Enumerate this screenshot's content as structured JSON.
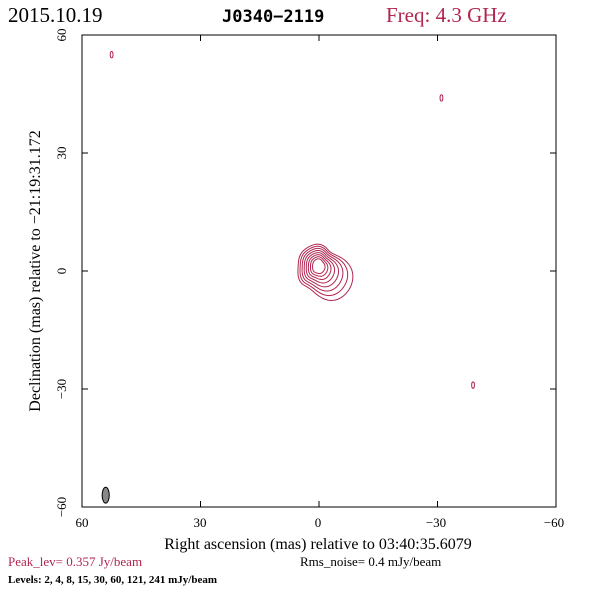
{
  "header": {
    "date": "2015.10.19",
    "source": "J0340−2119",
    "frequency": "Freq: 4.3 GHz"
  },
  "axes": {
    "xlabel": "Right ascension (mas) relative to 03:40:35.6079",
    "ylabel": "Declination (mas) relative to −21:19:31.172",
    "xlim": [
      60,
      -60
    ],
    "ylim": [
      -60,
      60
    ],
    "xticks": [
      "60",
      "30",
      "0",
      "−30",
      "−60"
    ],
    "yticks": [
      "−60",
      "−30",
      "0",
      "30",
      "60"
    ]
  },
  "footer": {
    "peak": "Peak_lev=  0.357 Jy/beam",
    "rms": "Rms_noise=  0.4 mJy/beam",
    "levels": "Levels:   2,    4,    8,   15,   30,   60,  121,  241 mJy/beam"
  },
  "colors": {
    "contour": "#b0264f",
    "axes": "#000000",
    "beam": "#888888"
  },
  "chart_data": {
    "type": "contour",
    "title": "J0340−2119",
    "xlabel": "Right ascension (mas) relative to 03:40:35.6079",
    "ylabel": "Declination (mas) relative to −21:19:31.172",
    "xlim": [
      60,
      -60
    ],
    "ylim": [
      -60,
      60
    ],
    "peak_jy_per_beam": 0.357,
    "rms_mjy_per_beam": 0.4,
    "contour_levels_mjy": [
      2,
      4,
      8,
      15,
      30,
      60,
      121,
      241
    ],
    "core": {
      "x": 0.5,
      "y": 1.0
    },
    "core_extension": {
      "x": -5,
      "y": -3
    },
    "noise_features": [
      {
        "x": 52.5,
        "y": 55
      },
      {
        "x": -31,
        "y": 44
      },
      {
        "x": -39,
        "y": -29
      }
    ],
    "beam": {
      "x": 54,
      "y": -57,
      "major_mas": 4,
      "minor_mas": 1.8
    }
  }
}
